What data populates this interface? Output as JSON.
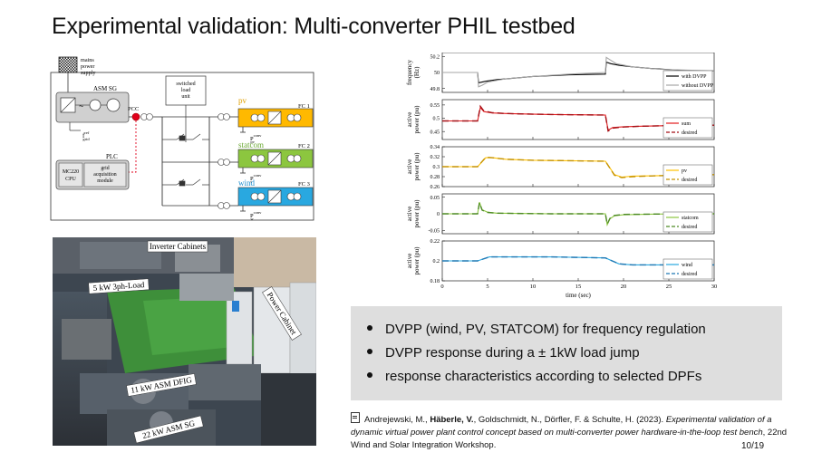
{
  "title": "Experimental validation: Multi-converter PHIL testbed",
  "schematic": {
    "mains_label": [
      "mains",
      "power",
      "supply"
    ],
    "asm_sg": "ASM SG",
    "pcc": "PCC",
    "f_grid": "f",
    "f_grid_sup": "ref",
    "f_grid_sub": "grid",
    "switched_load": [
      "switched",
      "load",
      "unit"
    ],
    "plc": "PLC",
    "cpu": [
      "MC220",
      "CPU"
    ],
    "grid_module": [
      "grid",
      "acquisition",
      "module"
    ],
    "units": [
      {
        "name": "pv",
        "fc": "FC 1",
        "p_main": "P",
        "p_sup": "conv",
        "p_sub": "pv",
        "color": "#ffb900"
      },
      {
        "name": "statcom",
        "fc": "FC 2",
        "p_main": "P",
        "p_sup": "conv",
        "p_sub": "s",
        "color": "#8cc63f"
      },
      {
        "name": "wind",
        "fc": "FC 3",
        "p_main": "P",
        "p_sup": "conv",
        "p_sub": "w",
        "color": "#29a8e0"
      }
    ],
    "colors": {
      "asm_box": "#d0d0d0",
      "pcc_dot": "#e0001b",
      "plc_box": "#d0d0d0"
    }
  },
  "chart_data": [
    {
      "type": "line",
      "ylabel": [
        "frequency",
        "(Hz)"
      ],
      "ylim": [
        49.75,
        50.25
      ],
      "yticks": [
        49.8,
        50,
        50.2
      ],
      "ytick_labels": [
        "49.8",
        "50",
        "50.2"
      ],
      "legend": "bottom-right",
      "series": [
        {
          "name": "with DVPP",
          "color": "#000000",
          "dash": "",
          "x": [
            0,
            3.9,
            4.0,
            4.8,
            6,
            8,
            10,
            14,
            18,
            18.1,
            18.6,
            19.5,
            21,
            23,
            26,
            28,
            30
          ],
          "y": [
            50,
            50,
            49.87,
            49.89,
            49.91,
            49.93,
            49.95,
            49.97,
            49.98,
            50.13,
            50.11,
            50.09,
            50.07,
            50.05,
            50.03,
            50.02,
            50.02
          ]
        },
        {
          "name": "without DVPP",
          "color": "#a6a6a6",
          "dash": "",
          "x": [
            0,
            3.9,
            4.0,
            4.4,
            5,
            7,
            10,
            14,
            18,
            18.1,
            18.5,
            19.2,
            21,
            24,
            27,
            30
          ],
          "y": [
            50,
            50,
            49.82,
            49.84,
            49.88,
            49.92,
            49.95,
            49.98,
            50,
            50.19,
            50.16,
            50.11,
            50.07,
            50.04,
            50.03,
            50.02
          ]
        }
      ]
    },
    {
      "type": "line",
      "ylabel": [
        "active",
        "power (pu)"
      ],
      "ylim": [
        0.42,
        0.57
      ],
      "yticks": [
        0.45,
        0.5,
        0.55
      ],
      "ytick_labels": [
        "0.45",
        "0.5",
        "0.55"
      ],
      "legend": "bottom-right",
      "series": [
        {
          "name": "sum",
          "color": "#e31a1c",
          "dash": "",
          "x": [
            0,
            3.9,
            4.2,
            4.6,
            5.5,
            7,
            9,
            12,
            15,
            18,
            18.3,
            18.8,
            20,
            22,
            25,
            28,
            30
          ],
          "y": [
            0.49,
            0.49,
            0.54,
            0.525,
            0.52,
            0.518,
            0.516,
            0.514,
            0.513,
            0.512,
            0.455,
            0.465,
            0.468,
            0.47,
            0.472,
            0.473,
            0.474
          ]
        },
        {
          "name": "desired",
          "color": "#a50f15",
          "dash": "7,4",
          "x": [
            0,
            3.9,
            4.2,
            4.6,
            5.5,
            7,
            9,
            12,
            15,
            18,
            18.3,
            18.8,
            20,
            22,
            25,
            28,
            30
          ],
          "y": [
            0.49,
            0.49,
            0.545,
            0.527,
            0.521,
            0.518,
            0.516,
            0.514,
            0.513,
            0.512,
            0.452,
            0.463,
            0.467,
            0.47,
            0.472,
            0.473,
            0.474
          ]
        }
      ]
    },
    {
      "type": "line",
      "ylabel": [
        "active",
        "power (pu)"
      ],
      "ylim": [
        0.26,
        0.34
      ],
      "yticks": [
        0.26,
        0.28,
        0.3,
        0.32,
        0.34
      ],
      "ytick_labels": [
        "0.26",
        "0.28",
        "0.3",
        "0.32",
        "0.34"
      ],
      "legend": "bottom-right",
      "series": [
        {
          "name": "pv",
          "color": "#ffc000",
          "dash": "",
          "x": [
            0,
            3.9,
            4.8,
            5.5,
            7,
            10,
            14,
            18,
            19,
            19.8,
            21,
            24,
            27,
            30
          ],
          "y": [
            0.3,
            0.3,
            0.318,
            0.318,
            0.315,
            0.313,
            0.312,
            0.311,
            0.284,
            0.279,
            0.281,
            0.282,
            0.283,
            0.284
          ]
        },
        {
          "name": "desired",
          "color": "#c59200",
          "dash": "7,4",
          "x": [
            0,
            3.9,
            4.8,
            5.5,
            7,
            10,
            14,
            18,
            19,
            19.8,
            21,
            24,
            27,
            30
          ],
          "y": [
            0.3,
            0.3,
            0.319,
            0.318,
            0.315,
            0.313,
            0.312,
            0.311,
            0.283,
            0.278,
            0.28,
            0.282,
            0.283,
            0.284
          ]
        }
      ]
    },
    {
      "type": "line",
      "ylabel": [
        "active",
        "power (pu)"
      ],
      "ylim": [
        -0.06,
        0.06
      ],
      "yticks": [
        -0.05,
        0,
        0.05
      ],
      "ytick_labels": [
        "-0.05",
        "0",
        "0.05"
      ],
      "legend": "bottom-right",
      "series": [
        {
          "name": "statcom",
          "color": "#8cc63f",
          "dash": "",
          "x": [
            0,
            3.9,
            4.1,
            4.4,
            5,
            6,
            8,
            12,
            18,
            18.2,
            18.5,
            19,
            20,
            23,
            26,
            30
          ],
          "y": [
            0,
            0,
            0.035,
            0.012,
            0.005,
            0.002,
            0.001,
            0,
            0,
            -0.033,
            -0.015,
            -0.006,
            -0.003,
            -0.001,
            0,
            0
          ]
        },
        {
          "name": "desired",
          "color": "#4d8a24",
          "dash": "7,4",
          "x": [
            0,
            3.9,
            4.1,
            4.4,
            5,
            6,
            8,
            12,
            18,
            18.2,
            18.5,
            19,
            20,
            23,
            26,
            30
          ],
          "y": [
            0,
            0,
            0.033,
            0.011,
            0.004,
            0.002,
            0.001,
            0,
            0,
            -0.031,
            -0.014,
            -0.005,
            -0.002,
            -0.001,
            0,
            0
          ]
        }
      ]
    },
    {
      "type": "line",
      "ylabel": [
        "active",
        "power (pu)"
      ],
      "ylim": [
        0.18,
        0.22
      ],
      "yticks": [
        0.18,
        0.2,
        0.22
      ],
      "ytick_labels": [
        "0.18",
        "0.2",
        "0.22"
      ],
      "xlim": [
        0,
        30
      ],
      "xticks": [
        0,
        5,
        10,
        15,
        20,
        25,
        30
      ],
      "xtick_labels": [
        "0",
        "5",
        "10",
        "15",
        "20",
        "25",
        "30"
      ],
      "xlabel": "time (sec)",
      "legend": "bottom-right",
      "series": [
        {
          "name": "wind",
          "color": "#29a8e0",
          "dash": "",
          "x": [
            0,
            3.9,
            5.2,
            6,
            8,
            12,
            18,
            19.5,
            21,
            24,
            27,
            30
          ],
          "y": [
            0.2,
            0.2,
            0.204,
            0.204,
            0.204,
            0.204,
            0.203,
            0.197,
            0.196,
            0.196,
            0.196,
            0.196
          ]
        },
        {
          "name": "desired",
          "color": "#1f78b4",
          "dash": "7,4",
          "x": [
            0,
            3.9,
            5.2,
            6,
            8,
            12,
            18,
            19.5,
            21,
            24,
            27,
            30
          ],
          "y": [
            0.2,
            0.2,
            0.204,
            0.204,
            0.204,
            0.204,
            0.203,
            0.197,
            0.196,
            0.196,
            0.196,
            0.196
          ]
        }
      ]
    }
  ],
  "photo": {
    "labels": [
      "Inverter Cabinets",
      "5 kW 3ph-Load",
      "Power Cabinet",
      "11 kW ASM DFIG",
      "22 kW ASM SG"
    ]
  },
  "bullets": [
    "DVPP (wind, PV, STATCOM) for frequency regulation",
    "DVPP response during a ± 1kW load jump",
    "response characteristics according to selected DPFs"
  ],
  "reference": {
    "authors_pre": "Andrejewski, M., ",
    "author_bold": "Häberle, V.",
    "authors_post": ", Goldschmidt, N., Dörfler, F. & Schulte, H. (2023). ",
    "title": "Experimental validation of a dynamic virtual power plant control concept based on multi-converter power hardware-in-the-loop test bench",
    "venue": ", 22nd Wind and Solar Integration Workshop."
  },
  "page_number": "10/19"
}
